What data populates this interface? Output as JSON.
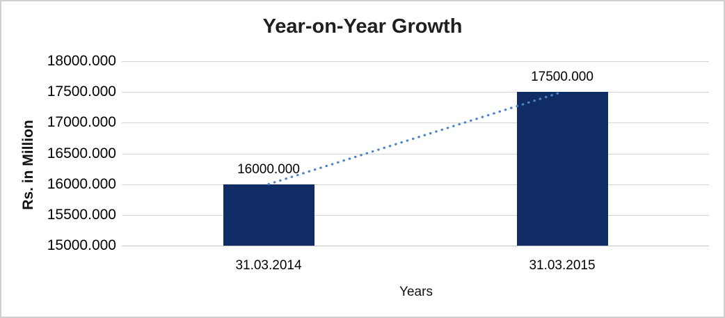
{
  "frame": {
    "background": "#FFFFFF",
    "border_color": "#CFCFCF"
  },
  "chart_data": {
    "type": "bar",
    "title": "Year-on-Year Growth",
    "xlabel": "Years",
    "ylabel": "Rs. in Million",
    "categories": [
      "31.03.2014",
      "31.03.2015"
    ],
    "values": [
      16000.0,
      17500.0
    ],
    "data_labels": [
      "16000.000",
      "17500.000"
    ],
    "ylim": [
      15000,
      18000
    ],
    "ytick_step": 500,
    "yticks": [
      "18000.000",
      "17500.000",
      "17000.000",
      "16500.000",
      "16000.000",
      "15500.000",
      "15000.000"
    ],
    "grid": "horizontal",
    "legend": "none",
    "bar_color": "#0F2D64",
    "gridline_color": "#D5D5D5",
    "axisline_color": "#C3C3C3",
    "trendline": {
      "type": "linear",
      "style": "dotted",
      "color": "#4C84C8",
      "connects_values": [
        16000.0,
        17500.0
      ]
    }
  }
}
